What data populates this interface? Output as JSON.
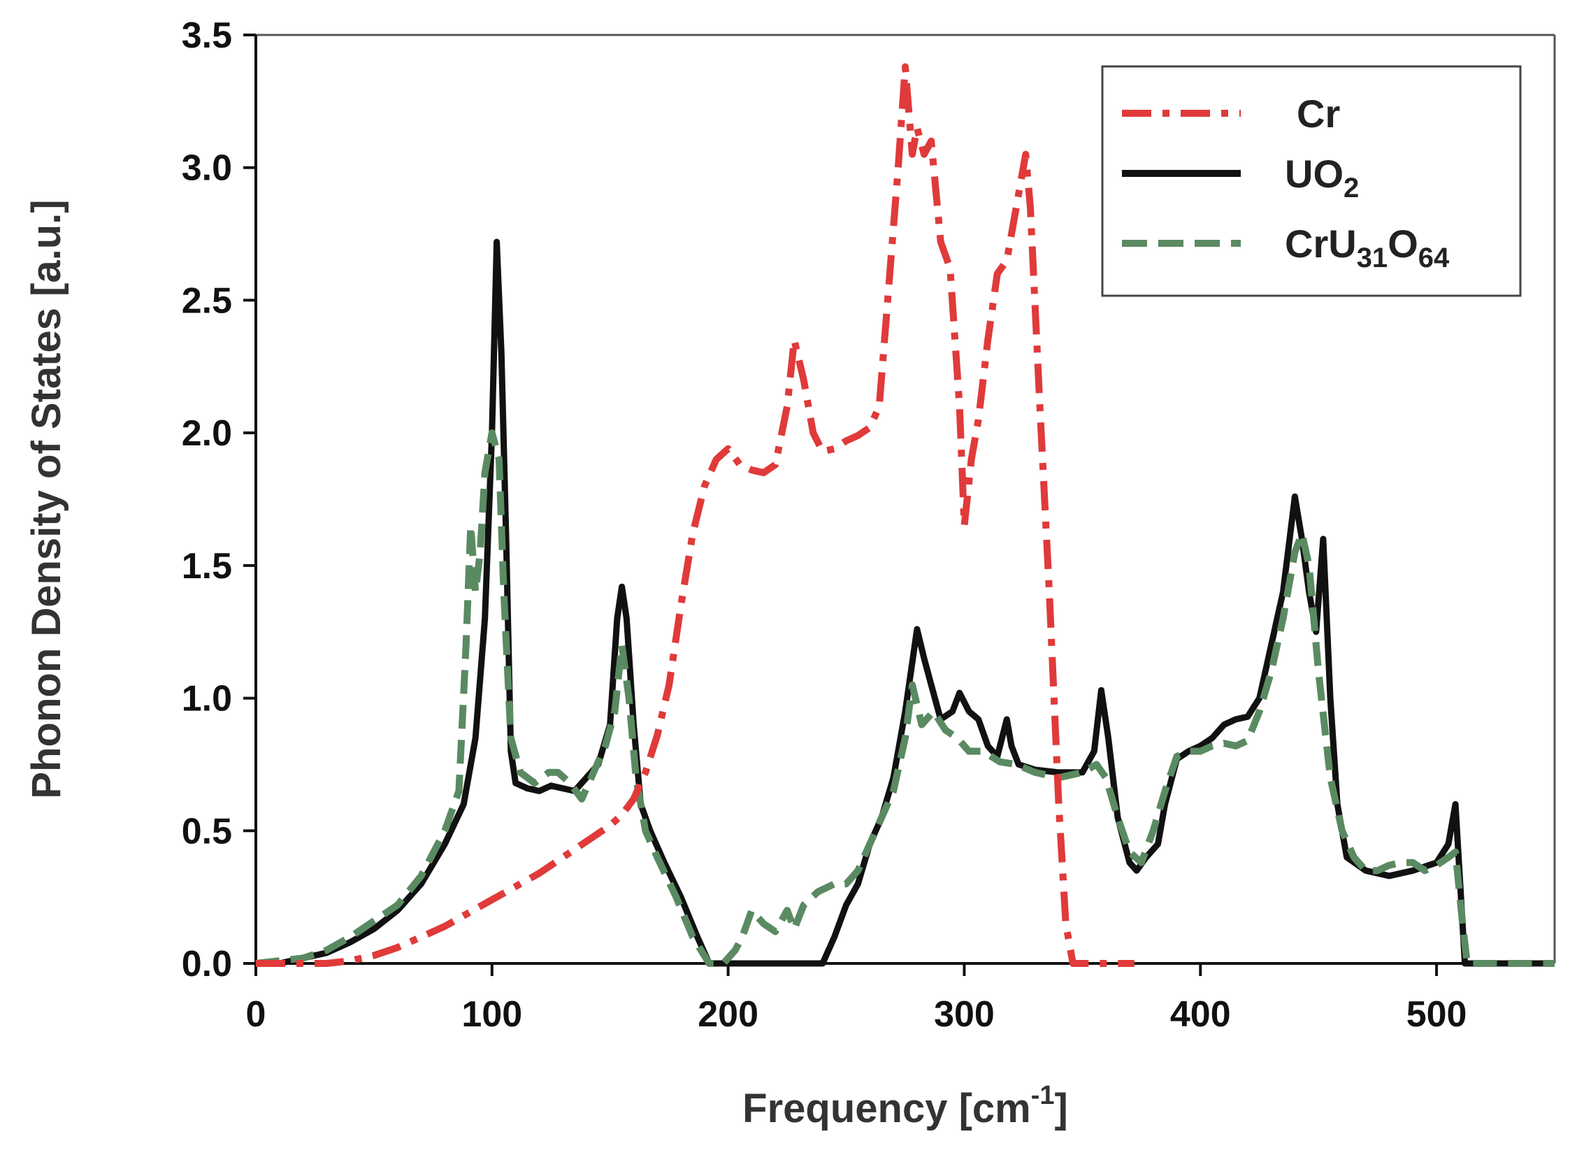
{
  "chart_data": {
    "type": "line",
    "title": "",
    "xlabel": "Frequency [cm",
    "xlabel_sup": "-1",
    "xlabel_end": "]",
    "ylabel": "Phonon Density of States [a.u.]",
    "xlim": [
      0,
      550
    ],
    "ylim": [
      0,
      3.5
    ],
    "xticks": [
      0,
      100,
      200,
      300,
      400,
      500
    ],
    "xtick_labels": [
      "0",
      "100",
      "200",
      "300",
      "400",
      "500"
    ],
    "yticks": [
      0,
      0.5,
      1.0,
      1.5,
      2.0,
      2.5,
      3.0,
      3.5
    ],
    "ytick_labels": [
      "0.0",
      "0.5",
      "1.0",
      "1.5",
      "2.0",
      "2.5",
      "3.0",
      "3.5"
    ],
    "legend_position": "top-right",
    "legend": [
      {
        "label": "Cr",
        "sub": "",
        "label2": "",
        "sub2": ""
      },
      {
        "label": "UO",
        "sub": "2",
        "label2": "",
        "sub2": ""
      },
      {
        "label": "CrU",
        "sub": "31",
        "label2": "O",
        "sub2": "64"
      }
    ],
    "series": [
      {
        "name": "Cr",
        "color": "#e03a3a",
        "style": "dash-dot",
        "points": [
          [
            0,
            0
          ],
          [
            20,
            0
          ],
          [
            30,
            0
          ],
          [
            40,
            0.01
          ],
          [
            50,
            0.03
          ],
          [
            60,
            0.06
          ],
          [
            70,
            0.1
          ],
          [
            80,
            0.14
          ],
          [
            90,
            0.19
          ],
          [
            100,
            0.24
          ],
          [
            110,
            0.29
          ],
          [
            120,
            0.34
          ],
          [
            130,
            0.4
          ],
          [
            140,
            0.46
          ],
          [
            150,
            0.52
          ],
          [
            155,
            0.56
          ],
          [
            160,
            0.62
          ],
          [
            165,
            0.72
          ],
          [
            170,
            0.86
          ],
          [
            175,
            1.05
          ],
          [
            180,
            1.35
          ],
          [
            185,
            1.62
          ],
          [
            190,
            1.8
          ],
          [
            195,
            1.9
          ],
          [
            200,
            1.94
          ],
          [
            205,
            1.88
          ],
          [
            210,
            1.86
          ],
          [
            215,
            1.85
          ],
          [
            220,
            1.88
          ],
          [
            225,
            2.1
          ],
          [
            228,
            2.35
          ],
          [
            232,
            2.2
          ],
          [
            236,
            2.0
          ],
          [
            240,
            1.93
          ],
          [
            245,
            1.94
          ],
          [
            250,
            1.97
          ],
          [
            255,
            1.99
          ],
          [
            260,
            2.02
          ],
          [
            264,
            2.1
          ],
          [
            268,
            2.55
          ],
          [
            272,
            3.0
          ],
          [
            275,
            3.38
          ],
          [
            278,
            3.05
          ],
          [
            280,
            3.15
          ],
          [
            283,
            3.05
          ],
          [
            286,
            3.1
          ],
          [
            290,
            2.72
          ],
          [
            294,
            2.62
          ],
          [
            298,
            2.1
          ],
          [
            300,
            1.65
          ],
          [
            303,
            1.9
          ],
          [
            306,
            2.05
          ],
          [
            310,
            2.35
          ],
          [
            314,
            2.6
          ],
          [
            318,
            2.65
          ],
          [
            322,
            2.85
          ],
          [
            326,
            3.05
          ],
          [
            328,
            2.85
          ],
          [
            332,
            2.1
          ],
          [
            336,
            1.4
          ],
          [
            340,
            0.6
          ],
          [
            343,
            0.15
          ],
          [
            346,
            0
          ],
          [
            360,
            0
          ],
          [
            372,
            0
          ]
        ]
      },
      {
        "name": "UO2",
        "color": "#111111",
        "style": "solid",
        "points": [
          [
            0,
            0
          ],
          [
            10,
            0
          ],
          [
            20,
            0.02
          ],
          [
            30,
            0.04
          ],
          [
            40,
            0.08
          ],
          [
            50,
            0.13
          ],
          [
            60,
            0.2
          ],
          [
            70,
            0.3
          ],
          [
            80,
            0.45
          ],
          [
            88,
            0.6
          ],
          [
            93,
            0.85
          ],
          [
            97,
            1.3
          ],
          [
            100,
            2.0
          ],
          [
            102,
            2.72
          ],
          [
            104,
            2.3
          ],
          [
            106,
            1.6
          ],
          [
            108,
            0.8
          ],
          [
            110,
            0.68
          ],
          [
            115,
            0.66
          ],
          [
            120,
            0.65
          ],
          [
            125,
            0.67
          ],
          [
            130,
            0.66
          ],
          [
            135,
            0.65
          ],
          [
            140,
            0.7
          ],
          [
            145,
            0.75
          ],
          [
            150,
            0.9
          ],
          [
            153,
            1.3
          ],
          [
            155,
            1.42
          ],
          [
            157,
            1.3
          ],
          [
            160,
            0.9
          ],
          [
            163,
            0.6
          ],
          [
            167,
            0.5
          ],
          [
            173,
            0.38
          ],
          [
            180,
            0.25
          ],
          [
            187,
            0.1
          ],
          [
            192,
            0
          ],
          [
            200,
            0
          ],
          [
            210,
            0
          ],
          [
            220,
            0
          ],
          [
            230,
            0
          ],
          [
            240,
            0
          ],
          [
            245,
            0.1
          ],
          [
            250,
            0.22
          ],
          [
            255,
            0.3
          ],
          [
            260,
            0.45
          ],
          [
            265,
            0.55
          ],
          [
            270,
            0.7
          ],
          [
            275,
            0.95
          ],
          [
            280,
            1.26
          ],
          [
            283,
            1.15
          ],
          [
            286,
            1.05
          ],
          [
            290,
            0.92
          ],
          [
            295,
            0.95
          ],
          [
            298,
            1.02
          ],
          [
            302,
            0.95
          ],
          [
            306,
            0.92
          ],
          [
            310,
            0.82
          ],
          [
            314,
            0.78
          ],
          [
            318,
            0.92
          ],
          [
            320,
            0.82
          ],
          [
            323,
            0.75
          ],
          [
            330,
            0.73
          ],
          [
            340,
            0.72
          ],
          [
            350,
            0.72
          ],
          [
            355,
            0.8
          ],
          [
            358,
            1.03
          ],
          [
            361,
            0.85
          ],
          [
            365,
            0.55
          ],
          [
            370,
            0.38
          ],
          [
            373,
            0.35
          ],
          [
            377,
            0.4
          ],
          [
            382,
            0.45
          ],
          [
            385,
            0.6
          ],
          [
            390,
            0.77
          ],
          [
            395,
            0.8
          ],
          [
            400,
            0.82
          ],
          [
            405,
            0.85
          ],
          [
            410,
            0.9
          ],
          [
            415,
            0.92
          ],
          [
            420,
            0.93
          ],
          [
            425,
            1.0
          ],
          [
            430,
            1.2
          ],
          [
            435,
            1.4
          ],
          [
            440,
            1.76
          ],
          [
            443,
            1.6
          ],
          [
            446,
            1.4
          ],
          [
            449,
            1.25
          ],
          [
            452,
            1.6
          ],
          [
            455,
            1.0
          ],
          [
            458,
            0.6
          ],
          [
            462,
            0.4
          ],
          [
            470,
            0.35
          ],
          [
            480,
            0.33
          ],
          [
            490,
            0.35
          ],
          [
            500,
            0.38
          ],
          [
            505,
            0.45
          ],
          [
            508,
            0.6
          ],
          [
            510,
            0.3
          ],
          [
            512,
            0
          ],
          [
            520,
            0
          ],
          [
            550,
            0
          ]
        ]
      },
      {
        "name": "CrU31O64",
        "color": "#5a8a62",
        "style": "dashed",
        "points": [
          [
            0,
            0
          ],
          [
            10,
            0.01
          ],
          [
            20,
            0.02
          ],
          [
            30,
            0.05
          ],
          [
            40,
            0.1
          ],
          [
            50,
            0.16
          ],
          [
            60,
            0.22
          ],
          [
            70,
            0.33
          ],
          [
            80,
            0.5
          ],
          [
            86,
            0.65
          ],
          [
            89,
            1.2
          ],
          [
            91,
            1.65
          ],
          [
            93,
            1.4
          ],
          [
            95,
            1.55
          ],
          [
            97,
            1.85
          ],
          [
            100,
            2.0
          ],
          [
            103,
            1.9
          ],
          [
            105,
            1.4
          ],
          [
            108,
            0.85
          ],
          [
            112,
            0.72
          ],
          [
            118,
            0.68
          ],
          [
            124,
            0.72
          ],
          [
            128,
            0.72
          ],
          [
            133,
            0.68
          ],
          [
            138,
            0.62
          ],
          [
            143,
            0.72
          ],
          [
            148,
            0.82
          ],
          [
            152,
            0.95
          ],
          [
            155,
            1.2
          ],
          [
            158,
            1.0
          ],
          [
            161,
            0.7
          ],
          [
            165,
            0.5
          ],
          [
            170,
            0.4
          ],
          [
            178,
            0.25
          ],
          [
            185,
            0.1
          ],
          [
            192,
            0
          ],
          [
            198,
            0
          ],
          [
            203,
            0.05
          ],
          [
            206,
            0.1
          ],
          [
            210,
            0.2
          ],
          [
            215,
            0.15
          ],
          [
            220,
            0.12
          ],
          [
            225,
            0.2
          ],
          [
            228,
            0.13
          ],
          [
            232,
            0.22
          ],
          [
            238,
            0.27
          ],
          [
            245,
            0.3
          ],
          [
            250,
            0.3
          ],
          [
            255,
            0.35
          ],
          [
            260,
            0.45
          ],
          [
            265,
            0.55
          ],
          [
            270,
            0.65
          ],
          [
            275,
            0.85
          ],
          [
            278,
            1.05
          ],
          [
            282,
            0.9
          ],
          [
            287,
            0.95
          ],
          [
            292,
            0.88
          ],
          [
            297,
            0.85
          ],
          [
            302,
            0.8
          ],
          [
            308,
            0.8
          ],
          [
            315,
            0.76
          ],
          [
            322,
            0.75
          ],
          [
            330,
            0.72
          ],
          [
            340,
            0.7
          ],
          [
            350,
            0.72
          ],
          [
            356,
            0.75
          ],
          [
            360,
            0.7
          ],
          [
            365,
            0.55
          ],
          [
            370,
            0.42
          ],
          [
            375,
            0.38
          ],
          [
            380,
            0.5
          ],
          [
            385,
            0.65
          ],
          [
            390,
            0.78
          ],
          [
            395,
            0.8
          ],
          [
            400,
            0.8
          ],
          [
            405,
            0.82
          ],
          [
            410,
            0.83
          ],
          [
            415,
            0.82
          ],
          [
            420,
            0.84
          ],
          [
            425,
            0.95
          ],
          [
            430,
            1.1
          ],
          [
            435,
            1.3
          ],
          [
            440,
            1.55
          ],
          [
            443,
            1.62
          ],
          [
            446,
            1.5
          ],
          [
            450,
            1.1
          ],
          [
            455,
            0.7
          ],
          [
            460,
            0.5
          ],
          [
            465,
            0.4
          ],
          [
            470,
            0.35
          ],
          [
            475,
            0.35
          ],
          [
            480,
            0.37
          ],
          [
            485,
            0.38
          ],
          [
            490,
            0.38
          ],
          [
            495,
            0.35
          ],
          [
            500,
            0.37
          ],
          [
            505,
            0.4
          ],
          [
            508,
            0.42
          ],
          [
            511,
            0.15
          ],
          [
            513,
            0
          ],
          [
            520,
            0
          ],
          [
            550,
            0
          ]
        ]
      }
    ]
  }
}
